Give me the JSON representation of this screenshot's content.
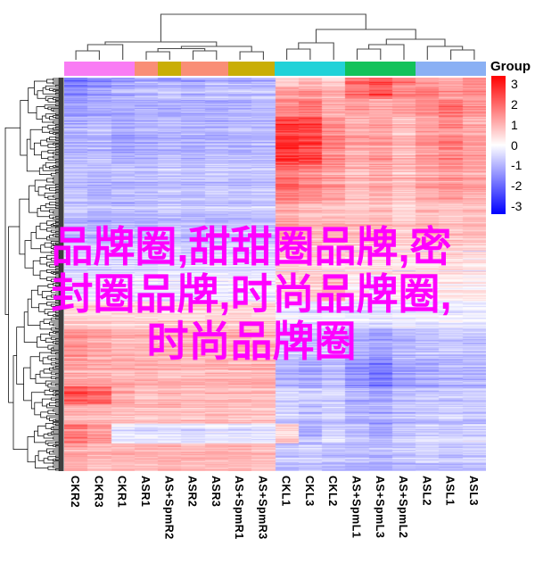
{
  "legend": {
    "title": "Group",
    "ticks": [
      "3",
      "2",
      "1",
      "0",
      "-1",
      "-2",
      "-3"
    ],
    "colors": {
      "high": "#FF0000",
      "mid": "#FFFFFF",
      "low": "#0000FF"
    }
  },
  "annotation": {
    "segments": [
      {
        "cols": 3,
        "color": "#F97CF4"
      },
      {
        "cols": 1,
        "color": "#F98E76"
      },
      {
        "cols": 1,
        "color": "#C9AE06"
      },
      {
        "cols": 2,
        "color": "#F98E76"
      },
      {
        "cols": 2,
        "color": "#C9AE06"
      },
      {
        "cols": 3,
        "color": "#22D2D8"
      },
      {
        "cols": 3,
        "color": "#13C25B"
      },
      {
        "cols": 3,
        "color": "#8AB0F4"
      }
    ]
  },
  "overlay": {
    "color": "#FF00FF",
    "lines": [
      "品牌圈,甜甜圈品牌,密",
      "封圈品牌,时尚品牌圈,",
      "时尚品牌圈"
    ]
  },
  "chart_data": {
    "type": "heatmap",
    "title": "",
    "columns": [
      "CKR2",
      "CKR3",
      "CKR1",
      "ASR1",
      "AS+SpmR2",
      "ASR2",
      "ASR3",
      "AS+SpmR1",
      "AS+SpmR3",
      "CKL1",
      "CKL3",
      "CKL2",
      "AS+SpmL1",
      "AS+SpmL3",
      "AS+SpmL2",
      "ASL2",
      "ASL1",
      "ASL3"
    ],
    "column_group_colors": [
      "#F97CF4",
      "#F97CF4",
      "#F97CF4",
      "#F98E76",
      "#C9AE06",
      "#F98E76",
      "#F98E76",
      "#C9AE06",
      "#C9AE06",
      "#22D2D8",
      "#22D2D8",
      "#22D2D8",
      "#13C25B",
      "#13C25B",
      "#13C25B",
      "#8AB0F4",
      "#8AB0F4",
      "#8AB0F4"
    ],
    "value_range": [
      -3,
      3
    ],
    "legend_ticks": [
      3,
      2,
      1,
      0,
      -1,
      -2,
      -3
    ],
    "colormap": "blue-white-red",
    "rows_approx": 441,
    "clustering": {
      "top_dendrogram": true,
      "left_dendrogram": true
    },
    "row_bands": [
      {
        "to": 0.02,
        "values": [
          -1.6,
          -1.4,
          -1.2,
          -1,
          -1.1,
          -1,
          -0.9,
          -1,
          -1,
          0.6,
          0.9,
          0.6,
          1.8,
          2.1,
          1.7,
          1.2,
          1,
          1.4
        ]
      },
      {
        "to": 0.055,
        "values": [
          -1.4,
          -1.2,
          -1,
          -0.9,
          -0.8,
          -0.9,
          -0.8,
          -0.8,
          -0.8,
          1,
          1.2,
          0.9,
          1.6,
          1.9,
          1.4,
          1.4,
          1.2,
          1.3
        ]
      },
      {
        "to": 0.1,
        "values": [
          -1.1,
          -1,
          -0.9,
          -0.8,
          -0.9,
          -0.8,
          -0.9,
          -0.8,
          -0.7,
          1.4,
          1.7,
          1,
          1.2,
          1,
          1.1,
          1.4,
          1.7,
          1.4
        ]
      },
      {
        "to": 0.22,
        "values": [
          -0.9,
          -0.8,
          -1,
          -0.9,
          -0.8,
          -0.9,
          -0.8,
          -0.8,
          -0.8,
          2.4,
          2.2,
          1.4,
          1,
          1.2,
          0.8,
          1.2,
          1.4,
          1.1
        ]
      },
      {
        "to": 0.32,
        "values": [
          -0.8,
          -0.9,
          -0.8,
          -0.8,
          -0.7,
          -0.8,
          -0.7,
          -0.8,
          -0.7,
          1.7,
          1.4,
          1.1,
          0.8,
          1,
          0.7,
          1,
          1.2,
          1
        ]
      },
      {
        "to": 0.42,
        "values": [
          -0.7,
          -0.8,
          -0.7,
          -0.7,
          -0.6,
          -0.7,
          -0.6,
          -0.6,
          -0.6,
          1,
          0.8,
          0.8,
          0.7,
          0.8,
          0.6,
          0.8,
          0.7,
          0.8
        ]
      },
      {
        "to": 0.5,
        "values": [
          -0.5,
          -0.45,
          -0.5,
          -0.45,
          -0.4,
          -0.45,
          -0.35,
          -0.4,
          -0.4,
          0.45,
          0.5,
          0.35,
          0.3,
          0.35,
          0.25,
          0.3,
          0.4,
          0.3
        ]
      },
      {
        "to": 0.57,
        "values": [
          -0.3,
          -0.25,
          -0.3,
          -0.2,
          -0.25,
          -0.2,
          -0.2,
          -0.2,
          -0.2,
          0.4,
          0.6,
          0.9,
          0.2,
          -0.2,
          0.2,
          0.15,
          0.2,
          0.2
        ]
      },
      {
        "to": 0.64,
        "values": [
          0.45,
          0.5,
          0.4,
          0.45,
          0.4,
          0.45,
          0.5,
          0.45,
          0.45,
          -0.2,
          -0.3,
          -0.2,
          -0.3,
          -0.35,
          -0.25,
          -0.25,
          -0.2,
          -0.25
        ]
      },
      {
        "to": 0.71,
        "values": [
          1.3,
          1.1,
          0.9,
          0.9,
          0.85,
          0.9,
          0.85,
          0.9,
          0.85,
          -0.6,
          -0.7,
          -0.5,
          -0.9,
          -1.1,
          -0.8,
          -0.7,
          -0.6,
          -0.7
        ]
      },
      {
        "to": 0.785,
        "values": [
          1.1,
          1,
          0.95,
          0.9,
          0.9,
          0.85,
          0.9,
          0.85,
          0.9,
          -0.8,
          -0.9,
          -0.7,
          -1.2,
          -1.5,
          -1,
          -0.9,
          -0.8,
          -0.8
        ]
      },
      {
        "to": 0.83,
        "values": [
          2,
          1.8,
          1,
          0.8,
          0.8,
          0.8,
          0.8,
          0.8,
          0.8,
          -0.6,
          -0.7,
          -0.6,
          -1,
          -1.2,
          -0.9,
          -0.8,
          -0.7,
          -0.7
        ]
      },
      {
        "to": 0.88,
        "values": [
          1,
          0.9,
          0.8,
          0.8,
          0.85,
          0.8,
          0.85,
          0.8,
          0.8,
          -0.6,
          -0.8,
          -0.6,
          -0.9,
          -1,
          -0.8,
          -0.7,
          -0.6,
          -0.7
        ]
      },
      {
        "to": 0.93,
        "values": [
          1.5,
          1.2,
          -0.3,
          -0.4,
          -0.35,
          -0.45,
          -0.3,
          -0.4,
          -0.35,
          0.5,
          -0.9,
          -0.5,
          -0.8,
          -1,
          -0.7,
          -0.5,
          -0.6,
          -0.5
        ]
      },
      {
        "to": 1.0,
        "values": [
          1,
          0.8,
          0.8,
          0.8,
          0.85,
          0.75,
          0.85,
          0.8,
          0.75,
          -0.7,
          -0.6,
          -0.7,
          -0.8,
          -0.9,
          -0.7,
          -0.6,
          -0.7,
          -0.6
        ]
      }
    ]
  }
}
